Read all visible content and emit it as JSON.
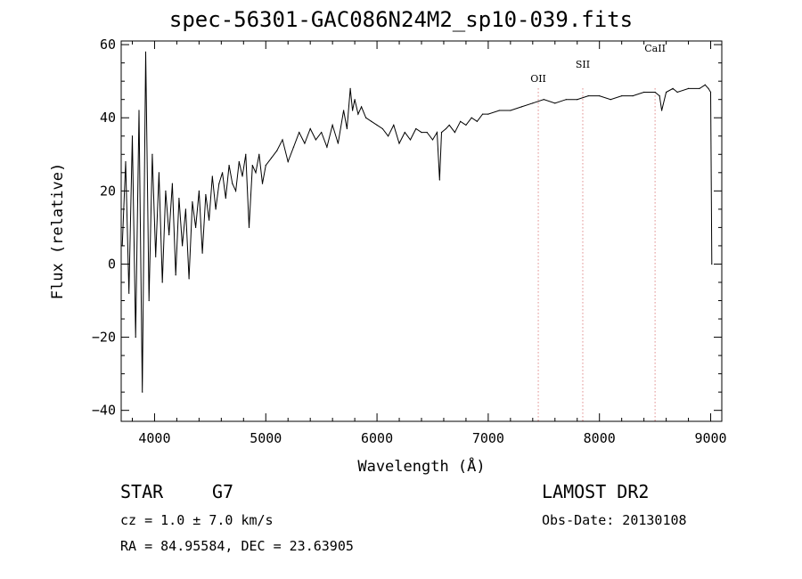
{
  "chart_data": {
    "type": "line",
    "title": "spec-56301-GAC086N24M2_sp10-039.fits",
    "xlabel": "Wavelength (Å)",
    "ylabel": "Flux (relative)",
    "xlim": [
      3700,
      9100
    ],
    "ylim": [
      -43,
      61
    ],
    "xticks": [
      4000,
      5000,
      6000,
      7000,
      8000,
      9000
    ],
    "yticks": [
      -40,
      -20,
      0,
      20,
      40,
      60
    ],
    "ytick_labels": [
      "−40",
      "−20",
      "0",
      "20",
      "40",
      "60"
    ],
    "lines": [
      {
        "label": "OII",
        "x": 7450,
        "color": "#d05050"
      },
      {
        "label": "SII",
        "x": 7850,
        "color": "#d05050"
      },
      {
        "label": "CaII",
        "x": 8500,
        "color": "#d05050"
      }
    ],
    "series": [
      {
        "x": [
          3710,
          3740,
          3770,
          3800,
          3830,
          3860,
          3890,
          3920,
          3950,
          3980,
          4010,
          4040,
          4070,
          4100,
          4130,
          4160,
          4190,
          4220,
          4250,
          4280,
          4310,
          4340,
          4370,
          4400,
          4430,
          4460,
          4490,
          4520,
          4550,
          4580,
          4610,
          4640,
          4670,
          4700,
          4730,
          4760,
          4790,
          4820,
          4850,
          4880,
          4910,
          4940,
          4970,
          5000,
          5050,
          5100,
          5150,
          5200,
          5250,
          5300,
          5350,
          5400,
          5450,
          5500,
          5550,
          5600,
          5650,
          5700,
          5730,
          5760,
          5780,
          5800,
          5830,
          5860,
          5900,
          5950,
          6000,
          6050,
          6100,
          6150,
          6200,
          6250,
          6300,
          6350,
          6400,
          6450,
          6500,
          6540,
          6563,
          6580,
          6620,
          6650,
          6700,
          6750,
          6800,
          6850,
          6900,
          6950,
          7000,
          7100,
          7200,
          7300,
          7400,
          7500,
          7600,
          7700,
          7800,
          7900,
          8000,
          8100,
          8200,
          8300,
          8400,
          8500,
          8540,
          8560,
          8600,
          8660,
          8700,
          8800,
          8900,
          8950,
          8980,
          9000,
          9010
        ],
        "y": [
          5,
          28,
          -8,
          35,
          -20,
          42,
          -35,
          58,
          -10,
          30,
          2,
          25,
          -5,
          20,
          8,
          22,
          -3,
          18,
          5,
          15,
          -4,
          17,
          10,
          20,
          3,
          19,
          12,
          24,
          15,
          22,
          25,
          18,
          27,
          22,
          20,
          28,
          24,
          30,
          10,
          27,
          25,
          30,
          22,
          27,
          29,
          31,
          34,
          28,
          32,
          36,
          33,
          37,
          34,
          36,
          32,
          38,
          33,
          42,
          37,
          48,
          42,
          45,
          41,
          43,
          40,
          39,
          38,
          37,
          35,
          38,
          33,
          36,
          34,
          37,
          36,
          36,
          34,
          36,
          23,
          36,
          37,
          38,
          36,
          39,
          38,
          40,
          39,
          41,
          41,
          42,
          42,
          43,
          44,
          45,
          44,
          45,
          45,
          46,
          46,
          45,
          46,
          46,
          47,
          47,
          46,
          42,
          47,
          48,
          47,
          48,
          48,
          49,
          48,
          47,
          0
        ]
      }
    ],
    "footer": {
      "class_label": "STAR",
      "subclass": "G7",
      "survey": "LAMOST DR2",
      "cz_line": "cz = 1.0 ± 7.0 km/s",
      "obs_date": "Obs-Date: 20130108",
      "radec_line": "RA =  84.95584, DEC =  23.63905"
    }
  }
}
